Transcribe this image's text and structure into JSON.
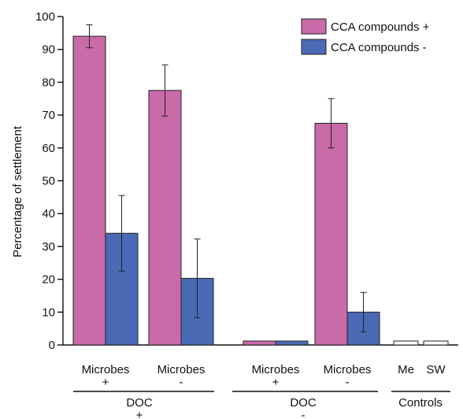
{
  "chart_data": {
    "type": "bar",
    "ylabel": "Percentage of settlement",
    "ylim": [
      0,
      100
    ],
    "yticks": [
      0,
      10,
      20,
      30,
      40,
      50,
      60,
      70,
      80,
      90,
      100
    ],
    "legend": {
      "placement": "top-right",
      "entries": [
        {
          "label": "CCA compounds +",
          "color": "#c96aa9"
        },
        {
          "label": "CCA compounds -",
          "color": "#4a6ab5"
        }
      ]
    },
    "series": [
      {
        "name": "CCA compounds +",
        "color": "#c96aa9",
        "values": [
          94,
          77.5,
          1.2,
          67.5
        ],
        "errors": [
          3.5,
          7.8,
          0,
          7.5
        ]
      },
      {
        "name": "CCA compounds -",
        "color": "#4a6ab5",
        "values": [
          34,
          20.3,
          1.2,
          10
        ],
        "errors": [
          11.5,
          12,
          0,
          6
        ]
      }
    ],
    "categories": [
      {
        "microbes_label": "Microbes",
        "microbes_sign": "+"
      },
      {
        "microbes_label": "Microbes",
        "microbes_sign": "-"
      },
      {
        "microbes_label": "Microbes",
        "microbes_sign": "+"
      },
      {
        "microbes_label": "Microbes",
        "microbes_sign": "-"
      }
    ],
    "doc_groups": [
      {
        "label": "DOC",
        "sign": "+"
      },
      {
        "label": "DOC",
        "sign": "-"
      }
    ],
    "controls": {
      "group_label": "Controls",
      "items": [
        {
          "label": "Me",
          "value": 1.2,
          "color": "#ffffff"
        },
        {
          "label": "SW",
          "value": 1.2,
          "color": "#ffffff"
        }
      ]
    }
  }
}
